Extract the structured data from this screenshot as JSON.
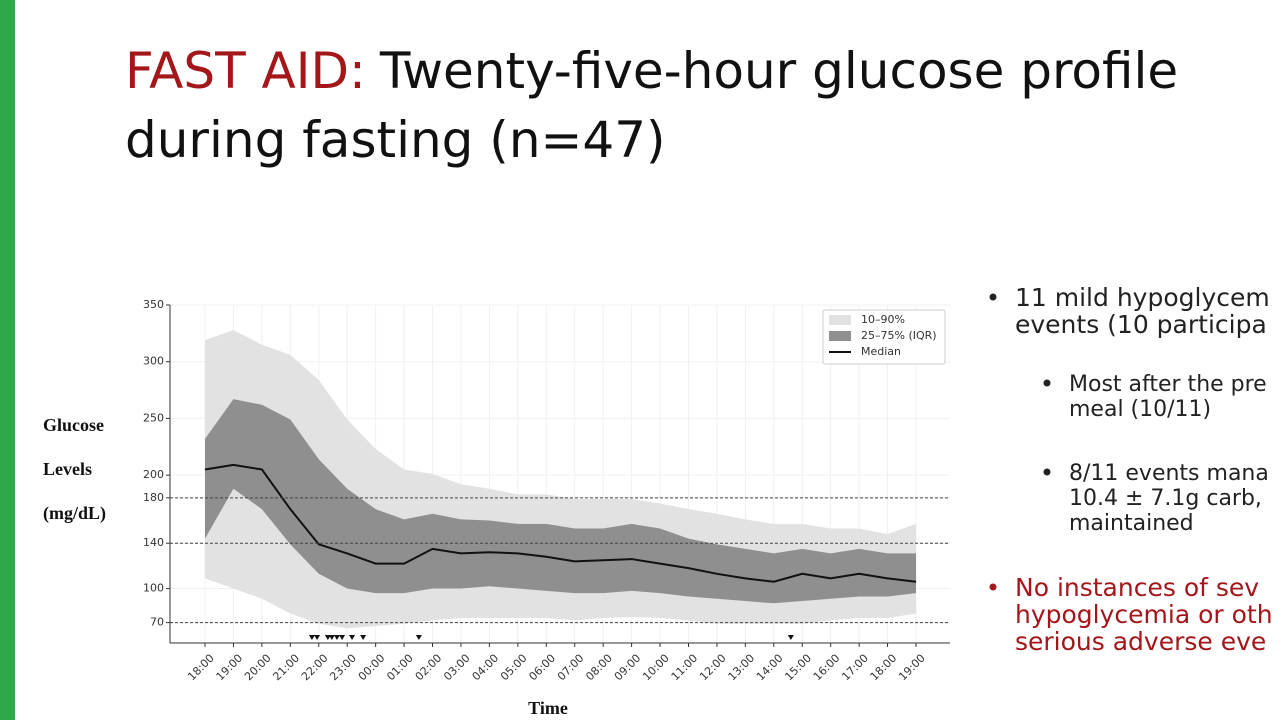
{
  "slide": {
    "title_highlight": "FAST AID:",
    "title_rest": "Twenty-five-hour glucose profile",
    "title_line2": "during fasting (n=47)",
    "bullets": [
      {
        "level": 1,
        "color": "#222222",
        "lines": [
          "11 mild hypoglycem",
          "events (10 participa"
        ]
      },
      {
        "level": 2,
        "color": "#222222",
        "lines": [
          "Most after the pre",
          "meal (10/11)"
        ]
      },
      {
        "level": 2,
        "color": "#222222",
        "lines": [
          "8/11 events mana",
          "10.4 ± 7.1g carb,",
          "maintained"
        ]
      },
      {
        "level": 1,
        "color": "#a3161a",
        "lines": [
          "No instances of sev",
          "hypoglycemia or oth",
          "serious adverse eve"
        ]
      }
    ]
  },
  "chart_data": {
    "type": "band-line",
    "y_label": [
      "Glucose",
      "Levels",
      "(mg/dL)"
    ],
    "x_label": "Time",
    "categories": [
      "18:00",
      "19:00",
      "20:00",
      "21:00",
      "22:00",
      "23:00",
      "00:00",
      "01:00",
      "02:00",
      "03:00",
      "04:00",
      "05:00",
      "06:00",
      "07:00",
      "08:00",
      "09:00",
      "10:00",
      "11:00",
      "12:00",
      "13:00",
      "14:00",
      "15:00",
      "16:00",
      "17:00",
      "18:00",
      "19:00"
    ],
    "series": [
      {
        "name": "10–90%",
        "color": "#e2e2e2",
        "lower": [
          109,
          100,
          91,
          78,
          69,
          65,
          67,
          69,
          72,
          74,
          74,
          74,
          74,
          72,
          74,
          75,
          74,
          72,
          69,
          69,
          69,
          69,
          72,
          74,
          74,
          78
        ],
        "values": [
          319,
          328,
          315,
          306,
          284,
          249,
          223,
          205,
          201,
          192,
          188,
          183,
          183,
          179,
          179,
          179,
          175,
          170,
          166,
          161,
          157,
          157,
          153,
          153,
          148,
          157
        ]
      },
      {
        "name": "25–75% (IQR)",
        "color": "#8f8f8f",
        "lower": [
          144,
          188,
          170,
          139,
          113,
          100,
          96,
          96,
          100,
          100,
          102,
          100,
          98,
          96,
          96,
          98,
          96,
          93,
          91,
          89,
          87,
          89,
          91,
          93,
          93,
          96
        ],
        "values": [
          232,
          267,
          262,
          249,
          214,
          188,
          170,
          161,
          166,
          161,
          160,
          157,
          157,
          153,
          153,
          157,
          153,
          144,
          139,
          135,
          131,
          135,
          131,
          135,
          131,
          131
        ]
      },
      {
        "name": "Median",
        "color": "#111111",
        "values": [
          205,
          209,
          205,
          170,
          139,
          131,
          122,
          122,
          135,
          131,
          132,
          131,
          128,
          124,
          125,
          126,
          122,
          118,
          113,
          109,
          106,
          113,
          109,
          113,
          109,
          106
        ]
      }
    ],
    "events_x": [
      3.76,
      3.94,
      4.32,
      4.46,
      4.64,
      4.82,
      5.17,
      5.56,
      7.52,
      20.6
    ],
    "ylim": [
      52,
      350
    ],
    "yticks": [
      70,
      100,
      140,
      180,
      200,
      250,
      300,
      350
    ],
    "reference_lines": [
      70,
      140,
      180
    ],
    "legend": "upper right"
  }
}
